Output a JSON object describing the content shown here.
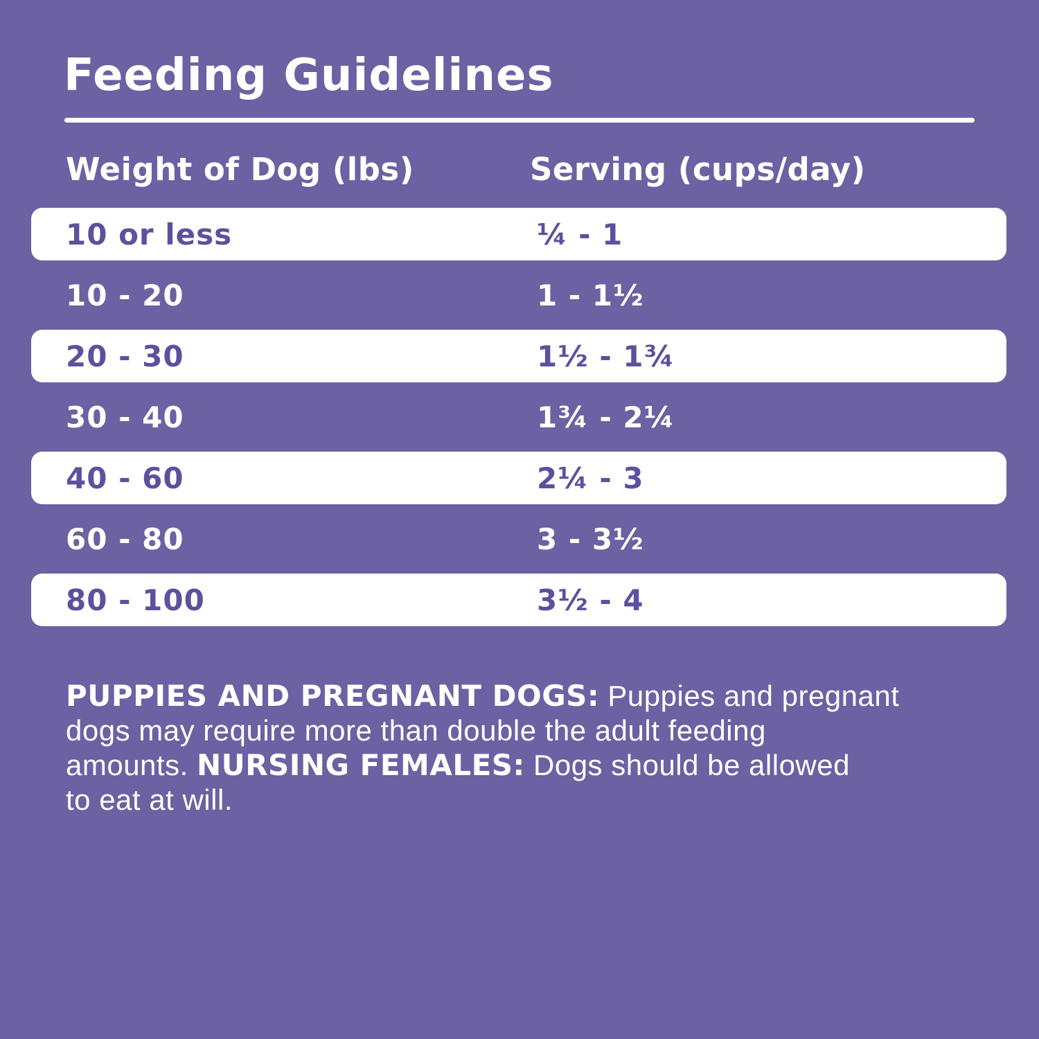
{
  "title": "Feeding Guidelines",
  "colors": {
    "background": "#6c61a2",
    "band": "#ffffff",
    "accent_text": "#5d509e",
    "white_text": "#ffffff"
  },
  "table": {
    "columns": {
      "weight_label": "Weight of Dog (lbs)",
      "serving_label": "Serving (cups/day)"
    },
    "rows": [
      {
        "weight": "10 or less",
        "serving": "¼ - 1",
        "highlight": true
      },
      {
        "weight": "10 - 20",
        "serving": "1 - 1½",
        "highlight": false
      },
      {
        "weight": "20 - 30",
        "serving": "1½ - 1¾",
        "highlight": true
      },
      {
        "weight": "30 - 40",
        "serving": "1¾ - 2¼",
        "highlight": false
      },
      {
        "weight": "40 - 60",
        "serving": "2¼ - 3",
        "highlight": true
      },
      {
        "weight": "60 - 80",
        "serving": "3 - 3½",
        "highlight": false
      },
      {
        "weight": "80 - 100",
        "serving": "3½ - 4",
        "highlight": true
      }
    ]
  },
  "notes": {
    "lines": [
      [
        {
          "text": "PUPPIES AND PREGNANT DOGS:",
          "bold": true
        },
        {
          "text": " Puppies and pregnant",
          "bold": false
        }
      ],
      [
        {
          "text": "dogs may require more than double the adult feeding",
          "bold": false
        }
      ],
      [
        {
          "text": "amounts. ",
          "bold": false
        },
        {
          "text": "NURSING FEMALES:",
          "bold": true
        },
        {
          "text": " Dogs should be allowed",
          "bold": false
        }
      ],
      [
        {
          "text": "to eat at will.",
          "bold": false
        }
      ]
    ]
  }
}
